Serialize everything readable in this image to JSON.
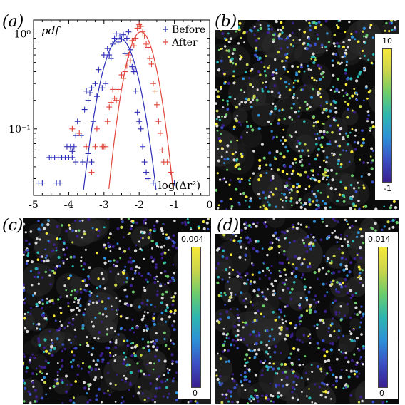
{
  "panels": {
    "a": {
      "label": "(a)"
    },
    "b": {
      "label": "(b)",
      "colorbar": {
        "max": "10",
        "min": "-1"
      }
    },
    "c": {
      "label": "(c)",
      "colorbar": {
        "max": "0.004",
        "min": "0"
      }
    },
    "d": {
      "label": "(d)",
      "colorbar": {
        "max": "0.014",
        "min": "0"
      }
    }
  },
  "colors": {
    "before": "#2b2bb8",
    "after": "#e0463c",
    "background": "#0b0b0b",
    "colormap": [
      "#3a1f8c",
      "#3b4fc4",
      "#2f8fd6",
      "#2cb6b0",
      "#6ccb6c",
      "#c8d44a",
      "#f7e93a"
    ]
  },
  "chart_data": {
    "type": "scatter",
    "title": "",
    "ylabel": "pdf",
    "xlabel": "log(Δr²)",
    "xlim": [
      -5,
      0
    ],
    "ylim": [
      0.02,
      1.4
    ],
    "yscale": "log",
    "xticks": [
      "-5",
      "-4",
      "-3",
      "-2",
      "-1",
      "0"
    ],
    "yticks": [
      {
        "value": 1,
        "label": "10⁰"
      },
      {
        "value": 0.1,
        "label": "10⁻¹"
      }
    ],
    "legend": {
      "placement": "top-right",
      "entries": [
        "Before",
        "After"
      ]
    },
    "series": [
      {
        "name": "Before",
        "marker": "+",
        "points": [
          [
            -4.85,
            0.027
          ],
          [
            -4.75,
            0.027
          ],
          [
            -4.55,
            0.05
          ],
          [
            -4.5,
            0.05
          ],
          [
            -4.4,
            0.05
          ],
          [
            -4.3,
            0.05
          ],
          [
            -4.2,
            0.05
          ],
          [
            -4.1,
            0.05
          ],
          [
            -4.0,
            0.05
          ],
          [
            -3.9,
            0.05
          ],
          [
            -4.35,
            0.027
          ],
          [
            -4.25,
            0.027
          ],
          [
            -4.05,
            0.065
          ],
          [
            -3.95,
            0.065
          ],
          [
            -3.85,
            0.065
          ],
          [
            -3.8,
            0.045
          ],
          [
            -3.9,
            0.058
          ],
          [
            -3.8,
            0.085
          ],
          [
            -3.75,
            0.12
          ],
          [
            -3.65,
            0.085
          ],
          [
            -3.6,
            0.045
          ],
          [
            -3.55,
            0.16
          ],
          [
            -3.5,
            0.25
          ],
          [
            -3.45,
            0.2
          ],
          [
            -3.4,
            0.24
          ],
          [
            -3.35,
            0.27
          ],
          [
            -3.45,
            0.055
          ],
          [
            -3.35,
            0.045
          ],
          [
            -3.3,
            0.12
          ],
          [
            -3.25,
            0.3
          ],
          [
            -3.2,
            0.22
          ],
          [
            -3.15,
            0.42
          ],
          [
            -3.05,
            0.27
          ],
          [
            -3.0,
            0.6
          ],
          [
            -2.95,
            0.3
          ],
          [
            -2.9,
            0.7
          ],
          [
            -2.85,
            0.6
          ],
          [
            -2.8,
            0.55
          ],
          [
            -2.75,
            0.78
          ],
          [
            -2.7,
            0.9
          ],
          [
            -2.65,
            1.0
          ],
          [
            -2.6,
            0.82
          ],
          [
            -2.55,
            0.95
          ],
          [
            -2.5,
            0.88
          ],
          [
            -2.45,
            0.98
          ],
          [
            -2.4,
            0.62
          ],
          [
            -2.35,
            0.9
          ],
          [
            -2.3,
            1.05
          ],
          [
            -2.25,
            0.68
          ],
          [
            -2.2,
            0.45
          ],
          [
            -2.15,
            0.4
          ],
          [
            -2.1,
            0.25
          ],
          [
            -2.05,
            0.15
          ],
          [
            -2.0,
            0.12
          ],
          [
            -1.95,
            0.1
          ],
          [
            -1.9,
            0.065
          ],
          [
            -1.85,
            0.045
          ],
          [
            -1.8,
            0.035
          ],
          [
            -1.75,
            0.03
          ],
          [
            -1.6,
            0.027
          ],
          [
            -1.05,
            0.027
          ],
          [
            -1.0,
            0.027
          ]
        ],
        "fit": {
          "type": "gaussian",
          "peak": 0.9,
          "center": -2.55,
          "sigma": 0.38
        }
      },
      {
        "name": "After",
        "marker": "+",
        "points": [
          [
            -3.9,
            0.1
          ],
          [
            -3.7,
            0.09
          ],
          [
            -3.5,
            0.065
          ],
          [
            -3.35,
            0.035
          ],
          [
            -3.25,
            0.065
          ],
          [
            -3.2,
            0.1
          ],
          [
            -3.05,
            0.065
          ],
          [
            -3.0,
            0.065
          ],
          [
            -2.95,
            0.065
          ],
          [
            -2.9,
            0.12
          ],
          [
            -2.85,
            0.17
          ],
          [
            -2.8,
            0.19
          ],
          [
            -2.75,
            0.26
          ],
          [
            -2.7,
            0.21
          ],
          [
            -2.65,
            0.2
          ],
          [
            -2.6,
            0.26
          ],
          [
            -2.5,
            0.37
          ],
          [
            -2.45,
            0.34
          ],
          [
            -2.4,
            0.4
          ],
          [
            -2.35,
            0.46
          ],
          [
            -2.3,
            0.6
          ],
          [
            -2.25,
            0.52
          ],
          [
            -2.2,
            0.85
          ],
          [
            -2.15,
            0.75
          ],
          [
            -2.1,
            0.9
          ],
          [
            -2.05,
            1.15
          ],
          [
            -2.0,
            1.25
          ],
          [
            -1.95,
            1.2
          ],
          [
            -1.9,
            1.05
          ],
          [
            -1.85,
            0.95
          ],
          [
            -1.8,
            0.78
          ],
          [
            -1.75,
            0.72
          ],
          [
            -1.7,
            0.55
          ],
          [
            -1.65,
            0.48
          ],
          [
            -1.6,
            0.3
          ],
          [
            -1.55,
            0.25
          ],
          [
            -1.5,
            0.18
          ],
          [
            -1.45,
            0.12
          ],
          [
            -1.4,
            0.09
          ],
          [
            -1.35,
            0.06
          ],
          [
            -1.3,
            0.045
          ],
          [
            -1.2,
            0.045
          ],
          [
            -1.1,
            0.035
          ],
          [
            -1.05,
            0.027
          ]
        ],
        "fit": {
          "type": "gaussian",
          "peak": 1.05,
          "center": -1.95,
          "sigma": 0.33
        }
      }
    ]
  }
}
